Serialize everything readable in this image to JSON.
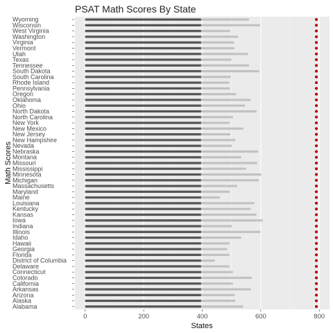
{
  "chart_data": {
    "type": "bar",
    "title": "PSAT Math Scores By State",
    "xlabel": "States",
    "ylabel": "Math Scores",
    "orientation": "horizontal",
    "xlim": [
      -35,
      835
    ],
    "x_ticks": [
      0,
      200,
      400,
      600,
      800
    ],
    "x_tick_labels": [
      "0",
      "200",
      "400",
      "600",
      "800"
    ],
    "reference_value": 790,
    "reference_color": "#b30000",
    "dark_segment_end": 396,
    "dark_segment_color": "#555555",
    "bar_color": "#c2c2c2",
    "panel_color": "#ebebeb",
    "grid": true,
    "categories": [
      "Alabama",
      "Alaska",
      "Arizona",
      "Arkansas",
      "California",
      "Colorado",
      "Connecticut",
      "Delaware",
      "District of Columbia",
      "Florida",
      "Georgia",
      "Hawaii",
      "Idaho",
      "Illinois",
      "Indiana",
      "Iowa",
      "Kansas",
      "Kentucky",
      "Louisiana",
      "Maine",
      "Maryland",
      "Massachusetts",
      "Michigan",
      "Minnesota",
      "Mississippi",
      "Missouri",
      "Montana",
      "Nebraska",
      "Nevada",
      "New Hampshire",
      "New Jersey",
      "New Mexico",
      "New York",
      "North Carolina",
      "North Dakota",
      "Ohio",
      "Oklahoma",
      "Oregon",
      "Pennsylvania",
      "Rhode Island",
      "South Carolina",
      "South Dakota",
      "Tennessee",
      "Texas",
      "Utah",
      "Vermont",
      "Virginia",
      "Washington",
      "West Virginia",
      "Wisconsin",
      "Wyoming"
    ],
    "values": [
      540,
      513,
      511,
      566,
      505,
      569,
      505,
      493,
      443,
      493,
      485,
      493,
      533,
      599,
      501,
      607,
      585,
      565,
      578,
      460,
      494,
      519,
      593,
      602,
      550,
      588,
      533,
      591,
      501,
      513,
      496,
      540,
      494,
      505,
      586,
      546,
      565,
      516,
      494,
      492,
      497,
      595,
      560,
      500,
      556,
      510,
      509,
      522,
      495,
      598,
      560
    ]
  }
}
